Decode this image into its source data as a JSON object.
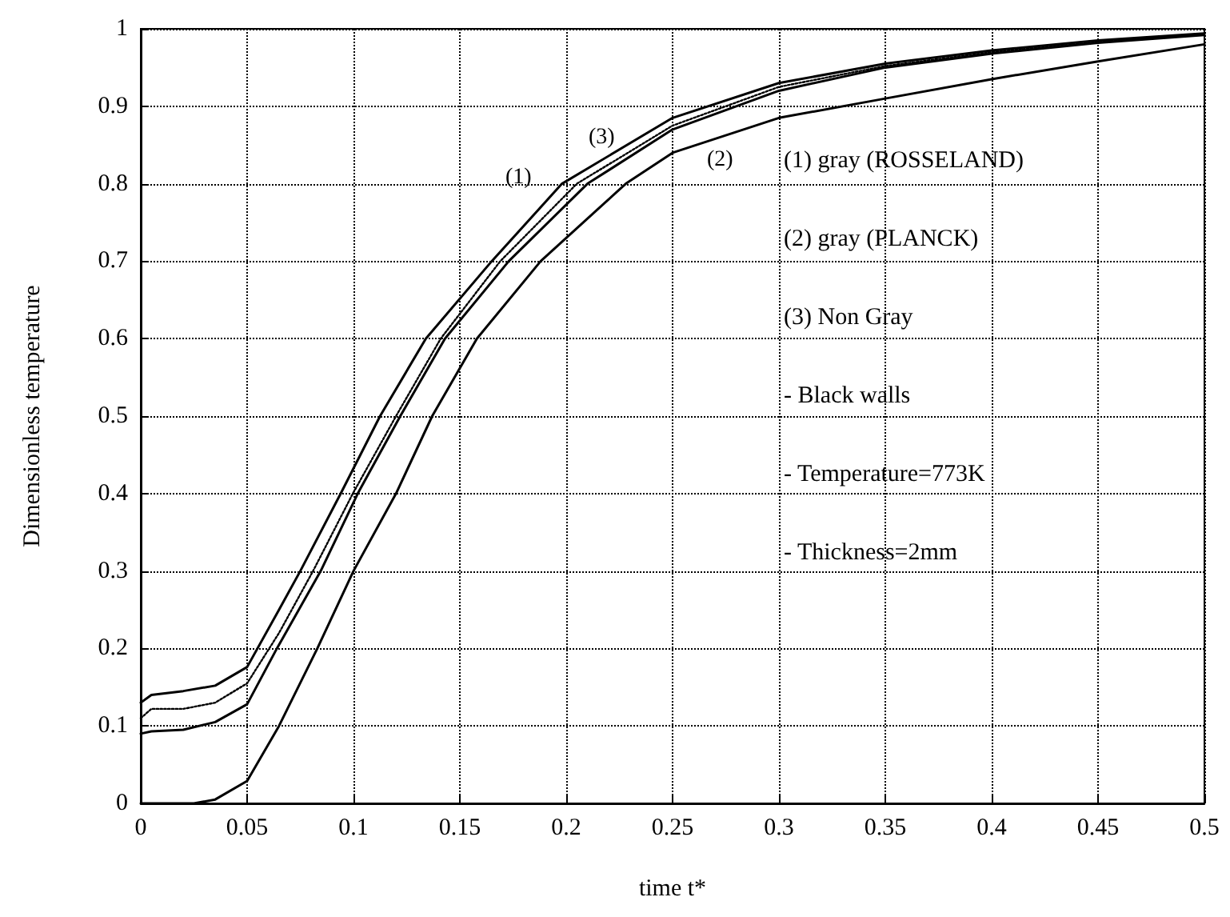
{
  "chart_data": {
    "type": "line",
    "xlabel": "time t*",
    "ylabel": "Dimensionless temperature",
    "xlim": [
      0,
      0.5
    ],
    "xticks": [
      0,
      0.05,
      0.1,
      0.15,
      0.2,
      0.25,
      0.3,
      0.35,
      0.4,
      0.45,
      0.5
    ],
    "ylim": [
      0,
      1
    ],
    "yticks": [
      0,
      0.1,
      0.2,
      0.3,
      0.4,
      0.5,
      0.6,
      0.7,
      0.8,
      0.9,
      1
    ],
    "grid": true,
    "marker": "none",
    "series": [
      {
        "color": "#000000",
        "line_style": "solid",
        "x": [
          0,
          0.005,
          0.02,
          0.035,
          0.05,
          0.065,
          0.075,
          0.094,
          0.1125,
          0.134,
          0.165,
          0.198,
          0.25,
          0.3,
          0.35,
          0.4,
          0.45,
          0.5
        ],
        "values": [
          0.13,
          0.14,
          0.145,
          0.152,
          0.176,
          0.25,
          0.3,
          0.4,
          0.5,
          0.6,
          0.7,
          0.8,
          0.885,
          0.93,
          0.955,
          0.972,
          0.985,
          0.994
        ]
      },
      {
        "color": "#000000",
        "line_style": "dotted",
        "x": [
          0,
          0.005,
          0.02,
          0.035,
          0.05,
          0.065,
          0.081,
          0.0997,
          0.12,
          0.141,
          0.169,
          0.205,
          0.25,
          0.3,
          0.35,
          0.4,
          0.45,
          0.5
        ],
        "values": [
          0.11,
          0.122,
          0.122,
          0.13,
          0.155,
          0.22,
          0.3,
          0.4,
          0.5,
          0.6,
          0.7,
          0.8,
          0.875,
          0.925,
          0.952,
          0.97,
          0.983,
          0.993
        ]
      },
      {
        "color": "#000000",
        "line_style": "solid",
        "x": [
          0,
          0.005,
          0.02,
          0.035,
          0.05,
          0.064,
          0.0846,
          0.102,
          0.122,
          0.143,
          0.173,
          0.21,
          0.25,
          0.3,
          0.35,
          0.4,
          0.45,
          0.5
        ],
        "values": [
          0.09,
          0.093,
          0.095,
          0.105,
          0.128,
          0.2,
          0.3,
          0.4,
          0.5,
          0.6,
          0.7,
          0.8,
          0.87,
          0.92,
          0.95,
          0.968,
          0.982,
          0.992
        ]
      },
      {
        "color": "#000000",
        "line_style": "solid",
        "x": [
          0,
          0.025,
          0.035,
          0.05,
          0.065,
          0.083,
          0.1,
          0.12,
          0.137,
          0.158,
          0.188,
          0.228,
          0.25,
          0.3,
          0.35,
          0.4,
          0.45,
          0.5
        ],
        "values": [
          0,
          0,
          0.005,
          0.029,
          0.1,
          0.2,
          0.3,
          0.4,
          0.5,
          0.6,
          0.7,
          0.8,
          0.84,
          0.885,
          0.91,
          0.935,
          0.958,
          0.98
        ]
      }
    ],
    "annotations": [
      "(1)",
      "(3)",
      "(2)",
      "(1) gray (ROSSELAND)",
      "(2) gray (PLANCK)",
      "(3) Non Gray",
      "- Black walls",
      "- Temperature=773K",
      "- Thickness=2mm"
    ]
  }
}
